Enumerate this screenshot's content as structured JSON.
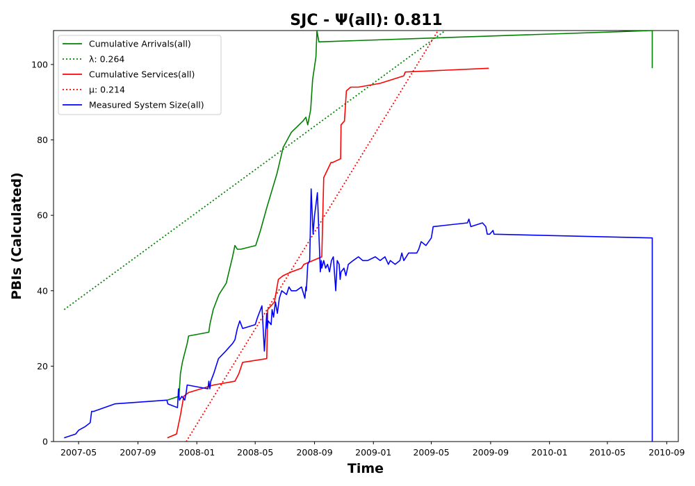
{
  "chart_data": {
    "type": "line",
    "title": "SJC -  Ψ(all): 0.811",
    "xlabel": "Time",
    "ylabel": "PBIs (Calculated)",
    "xlim": [
      "2007-03-10",
      "2010-09-25"
    ],
    "ylim": [
      0,
      109
    ],
    "x_ticks": [
      "2007-05",
      "2007-09",
      "2008-01",
      "2008-05",
      "2008-09",
      "2009-01",
      "2009-05",
      "2009-09",
      "2010-01",
      "2010-05",
      "2010-09"
    ],
    "y_ticks": [
      0,
      20,
      40,
      60,
      80,
      100
    ],
    "legend_position": "top-left",
    "grid": false,
    "series": [
      {
        "name": "Cumulative Arrivals(all)",
        "color": "#008000",
        "style": "solid",
        "x": [
          "2007-11-01",
          "2007-11-25",
          "2007-11-28",
          "2007-12-02",
          "2007-12-06",
          "2007-12-12",
          "2007-12-15",
          "2008-01-26",
          "2008-01-28",
          "2008-02-04",
          "2008-02-10",
          "2008-02-16",
          "2008-03-02",
          "2008-03-15",
          "2008-03-20",
          "2008-03-25",
          "2008-04-01",
          "2008-05-02",
          "2008-05-12",
          "2008-05-25",
          "2008-06-15",
          "2008-06-28",
          "2008-07-15",
          "2008-08-08",
          "2008-08-14",
          "2008-08-18",
          "2008-08-24",
          "2008-08-28",
          "2008-09-04",
          "2008-09-06",
          "2008-09-10",
          "2010-08-02",
          "2010-08-02"
        ],
        "y": [
          11,
          12,
          18,
          21,
          23,
          26,
          28,
          29,
          31,
          35,
          37,
          39,
          42,
          49,
          52,
          51,
          51,
          52,
          56,
          62,
          71,
          78,
          82,
          85,
          86,
          84,
          88,
          96,
          102,
          109,
          106,
          109,
          99
        ]
      },
      {
        "name": "λ: 0.264",
        "color": "#008000",
        "style": "dotted",
        "x": [
          "2007-04-01",
          "2009-05-30"
        ],
        "y": [
          35,
          109
        ]
      },
      {
        "name": "Cumulative Services(all)",
        "color": "#ff0000",
        "style": "solid",
        "x": [
          "2007-11-01",
          "2007-11-20",
          "2007-11-28",
          "2007-12-05",
          "2007-12-15",
          "2008-02-05",
          "2008-03-20",
          "2008-03-28",
          "2008-04-05",
          "2008-05-25",
          "2008-05-27",
          "2008-06-10",
          "2008-06-18",
          "2008-06-28",
          "2008-07-15",
          "2008-08-05",
          "2008-08-10",
          "2008-09-16",
          "2008-09-20",
          "2008-10-05",
          "2008-10-08",
          "2008-10-25",
          "2008-10-26",
          "2008-11-02",
          "2008-11-06",
          "2008-11-15",
          "2008-12-01",
          "2009-01-15",
          "2009-03-05",
          "2009-03-08",
          "2009-08-28"
        ],
        "y": [
          1,
          2,
          7,
          12,
          13,
          15,
          16,
          18,
          21,
          22,
          35,
          37,
          43,
          44,
          45,
          46,
          47,
          49,
          70,
          74,
          74,
          75,
          84,
          85,
          93,
          94,
          94,
          95,
          97,
          98,
          99
        ]
      },
      {
        "name": "μ: 0.214",
        "color": "#ff0000",
        "style": "dotted",
        "x": [
          "2007-12-10",
          "2009-05-15"
        ],
        "y": [
          0,
          109
        ]
      },
      {
        "name": "Measured System Size(all)",
        "color": "#0000ff",
        "style": "solid",
        "x": [
          "2007-04-01",
          "2007-04-25",
          "2007-05-01",
          "2007-05-15",
          "2007-05-25",
          "2007-05-28",
          "2007-06-01",
          "2007-07-15",
          "2007-10-31",
          "2007-11-02",
          "2007-11-22",
          "2007-11-24",
          "2007-11-26",
          "2007-12-01",
          "2007-12-07",
          "2007-12-10",
          "2007-12-12",
          "2008-01-24",
          "2008-01-26",
          "2008-01-28",
          "2008-01-30",
          "2008-02-05",
          "2008-02-10",
          "2008-02-15",
          "2008-03-01",
          "2008-03-08",
          "2008-03-15",
          "2008-03-20",
          "2008-03-25",
          "2008-03-30",
          "2008-04-05",
          "2008-05-01",
          "2008-05-06",
          "2008-05-15",
          "2008-05-20",
          "2008-05-25",
          "2008-05-26",
          "2008-05-28",
          "2008-06-03",
          "2008-06-05",
          "2008-06-08",
          "2008-06-12",
          "2008-06-16",
          "2008-06-20",
          "2008-06-25",
          "2008-07-05",
          "2008-07-10",
          "2008-07-15",
          "2008-07-25",
          "2008-08-05",
          "2008-08-12",
          "2008-08-14",
          "2008-08-15",
          "2008-08-18",
          "2008-08-22",
          "2008-08-25",
          "2008-08-29",
          "2008-09-01",
          "2008-09-03",
          "2008-09-07",
          "2008-09-13",
          "2008-09-15",
          "2008-09-16",
          "2008-09-20",
          "2008-09-24",
          "2008-09-28",
          "2008-10-02",
          "2008-10-06",
          "2008-10-10",
          "2008-10-15",
          "2008-10-18",
          "2008-10-22",
          "2008-10-24",
          "2008-10-26",
          "2008-11-01",
          "2008-11-05",
          "2008-11-10",
          "2008-11-20",
          "2008-12-01",
          "2008-12-10",
          "2008-12-20",
          "2009-01-05",
          "2009-01-15",
          "2009-01-25",
          "2009-02-01",
          "2009-02-05",
          "2009-02-15",
          "2009-02-25",
          "2009-03-01",
          "2009-03-05",
          "2009-03-10",
          "2009-03-15",
          "2009-04-01",
          "2009-04-05",
          "2009-04-10",
          "2009-04-20",
          "2009-05-01",
          "2009-05-05",
          "2009-07-15",
          "2009-07-18",
          "2009-07-22",
          "2009-08-15",
          "2009-08-22",
          "2009-08-25",
          "2009-08-30",
          "2009-09-06",
          "2009-09-08",
          "2010-08-02",
          "2010-08-02"
        ],
        "y": [
          1,
          2,
          3,
          4,
          5,
          8,
          8,
          10,
          11,
          10,
          9,
          14,
          11,
          12,
          11,
          13,
          15,
          14,
          16,
          14,
          16,
          18,
          20,
          22,
          24,
          25,
          26,
          27,
          30,
          32,
          30,
          31,
          33,
          36,
          24,
          34,
          30,
          32,
          31,
          35,
          33,
          37,
          34,
          38,
          40,
          39,
          41,
          40,
          40,
          41,
          38,
          41,
          40,
          47,
          48,
          67,
          55,
          60,
          62,
          66,
          45,
          48,
          46,
          48,
          46,
          47,
          45,
          48,
          49,
          40,
          48,
          47,
          43,
          45,
          46,
          44,
          47,
          48,
          49,
          48,
          48,
          49,
          48,
          49,
          47,
          48,
          47,
          48,
          50,
          48,
          49,
          50,
          50,
          51,
          53,
          52,
          54,
          57,
          58,
          59,
          57,
          58,
          57,
          55,
          55,
          56,
          55,
          54,
          0
        ]
      }
    ]
  }
}
